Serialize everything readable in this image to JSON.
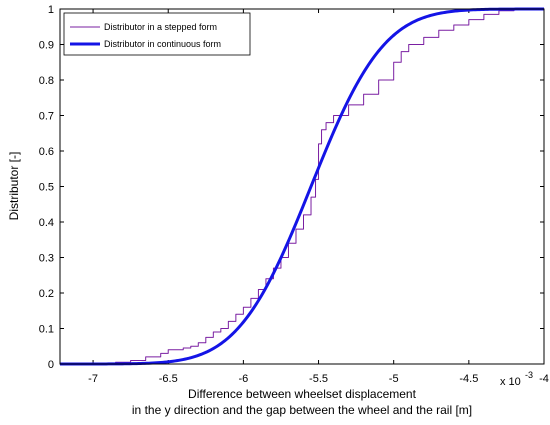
{
  "chart_data": {
    "type": "line",
    "xlabel_line1": "Difference between wheelset displacement",
    "xlabel_line2": "in the y direction and the gap between the wheel and the rail [m]",
    "ylabel": "Distributor [-]",
    "x_scale_label": "x 10",
    "x_scale_exponent": "-3",
    "xlim": [
      -7.22,
      -4.0
    ],
    "ylim": [
      0,
      1
    ],
    "x_ticks": [
      -7,
      -6.5,
      -6,
      -5.5,
      -5,
      -4.5,
      -4
    ],
    "x_tick_labels": [
      "-7",
      "-6.5",
      "-6",
      "-5.5",
      "-5",
      "-4.5",
      "-4"
    ],
    "y_ticks": [
      0,
      0.1,
      0.2,
      0.3,
      0.4,
      0.5,
      0.6,
      0.7,
      0.8,
      0.9,
      1
    ],
    "y_tick_labels": [
      "0",
      "0.1",
      "0.2",
      "0.3",
      "0.4",
      "0.5",
      "0.6",
      "0.7",
      "0.8",
      "0.9",
      "1"
    ],
    "grid": false,
    "legend_position": "top-left",
    "series": [
      {
        "name": "Distributor in a stepped form",
        "style": "stepped",
        "color": "#7a1fa2",
        "points": [
          [
            -7.22,
            0.0
          ],
          [
            -6.95,
            0.0
          ],
          [
            -6.85,
            0.005
          ],
          [
            -6.75,
            0.01
          ],
          [
            -6.65,
            0.02
          ],
          [
            -6.55,
            0.03
          ],
          [
            -6.5,
            0.04
          ],
          [
            -6.45,
            0.04
          ],
          [
            -6.4,
            0.045
          ],
          [
            -6.35,
            0.05
          ],
          [
            -6.3,
            0.06
          ],
          [
            -6.25,
            0.075
          ],
          [
            -6.2,
            0.09
          ],
          [
            -6.15,
            0.1
          ],
          [
            -6.1,
            0.12
          ],
          [
            -6.05,
            0.14
          ],
          [
            -6.0,
            0.16
          ],
          [
            -5.95,
            0.185
          ],
          [
            -5.9,
            0.21
          ],
          [
            -5.85,
            0.24
          ],
          [
            -5.8,
            0.27
          ],
          [
            -5.75,
            0.3
          ],
          [
            -5.7,
            0.34
          ],
          [
            -5.65,
            0.38
          ],
          [
            -5.6,
            0.42
          ],
          [
            -5.55,
            0.47
          ],
          [
            -5.52,
            0.52
          ],
          [
            -5.5,
            0.62
          ],
          [
            -5.48,
            0.66
          ],
          [
            -5.45,
            0.68
          ],
          [
            -5.4,
            0.7
          ],
          [
            -5.3,
            0.73
          ],
          [
            -5.2,
            0.76
          ],
          [
            -5.1,
            0.8
          ],
          [
            -5.0,
            0.85
          ],
          [
            -4.95,
            0.88
          ],
          [
            -4.9,
            0.9
          ],
          [
            -4.8,
            0.92
          ],
          [
            -4.7,
            0.94
          ],
          [
            -4.6,
            0.955
          ],
          [
            -4.5,
            0.97
          ],
          [
            -4.4,
            0.985
          ],
          [
            -4.3,
            0.995
          ],
          [
            -4.2,
            1.0
          ],
          [
            -4.0,
            1.0
          ]
        ]
      },
      {
        "name": "Distributor in continuous form",
        "style": "continuous",
        "color": "#1414e6",
        "mean": -5.55,
        "std": 0.38
      }
    ]
  }
}
